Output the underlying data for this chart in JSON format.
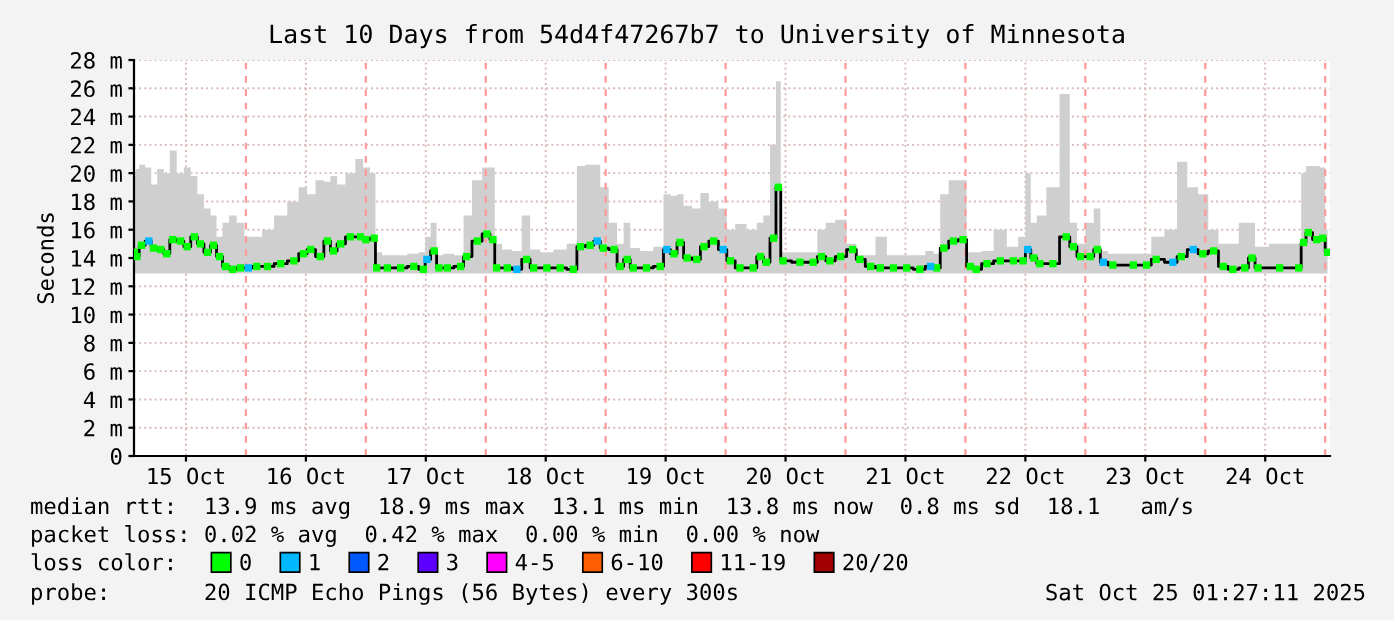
{
  "chart_data": {
    "type": "step",
    "title": "Last 10 Days from 54d4f47267b7 to University of Minnesota",
    "ylabel": "Seconds",
    "legend_title": "loss color:",
    "x": [
      "2025-10-15T01:41",
      "2025-10-15T02:10",
      "2025-10-15T03:07",
      "2025-10-15T04:34",
      "2025-10-15T05:31",
      "2025-10-15T06:58",
      "2025-10-15T08:10",
      "2025-10-15T09:22",
      "2025-10-15T10:55",
      "2025-10-15T12:14",
      "2025-10-15T13:41",
      "2025-10-15T14:53",
      "2025-10-15T16:19",
      "2025-10-15T17:31",
      "2025-10-15T18:43",
      "2025-10-15T19:55",
      "2025-10-15T21:22",
      "2025-10-15T22:55",
      "2025-10-16T00:29",
      "2025-10-16T02:10",
      "2025-10-16T04:19",
      "2025-10-16T06:58",
      "2025-10-16T09:36",
      "2025-10-16T11:31",
      "2025-10-16T12:58",
      "2025-10-16T14:53",
      "2025-10-16T16:19",
      "2025-10-16T17:31",
      "2025-10-16T18:58",
      "2025-10-16T20:53",
      "2025-10-16T22:55",
      "2025-10-17T00:00",
      "2025-10-17T01:41",
      "2025-10-17T02:10",
      "2025-10-17T04:19",
      "2025-10-17T06:58",
      "2025-10-17T09:36",
      "2025-10-17T11:31",
      "2025-10-17T12:14",
      "2025-10-17T13:41",
      "2025-10-17T14:38",
      "2025-10-17T16:19",
      "2025-10-17T18:58",
      "2025-10-17T20:10",
      "2025-10-17T22:19",
      "2025-10-18T00:14",
      "2025-10-18T01:26",
      "2025-10-18T02:10",
      "2025-10-18T04:19",
      "2025-10-18T06:14",
      "2025-10-18T08:10",
      "2025-10-18T09:36",
      "2025-10-18T12:14",
      "2025-10-18T14:53",
      "2025-10-18T17:31",
      "2025-10-18T18:58",
      "2025-10-18T20:53",
      "2025-10-18T22:19",
      "2025-10-18T23:31",
      "2025-10-19T01:41",
      "2025-10-19T02:53",
      "2025-10-19T04:19",
      "2025-10-19T05:31",
      "2025-10-19T08:10",
      "2025-10-19T10:55",
      "2025-10-19T12:14",
      "2025-10-19T13:41",
      "2025-10-19T14:53",
      "2025-10-19T16:19",
      "2025-10-19T18:14",
      "2025-10-19T19:41",
      "2025-10-19T21:36",
      "2025-10-19T23:31",
      "2025-10-20T00:58",
      "2025-10-20T02:53",
      "2025-10-20T05:31",
      "2025-10-20T06:58",
      "2025-10-20T08:10",
      "2025-10-20T09:36",
      "2025-10-20T10:34",
      "2025-10-20T11:31",
      "2025-10-20T14:53",
      "2025-10-20T17:31",
      "2025-10-20T19:12",
      "2025-10-20T20:53",
      "2025-10-20T23:02",
      "2025-10-21T01:26",
      "2025-10-21T02:53",
      "2025-10-21T05:02",
      "2025-10-21T06:58",
      "2025-10-21T09:36",
      "2025-10-21T12:14",
      "2025-10-21T14:53",
      "2025-10-21T17:02",
      "2025-10-21T18:14",
      "2025-10-21T19:41",
      "2025-10-21T21:36",
      "2025-10-21T23:31",
      "2025-10-22T00:58",
      "2025-10-22T02:10",
      "2025-10-22T04:19",
      "2025-10-22T06:58",
      "2025-10-22T09:36",
      "2025-10-22T11:31",
      "2025-10-22T12:29",
      "2025-10-22T13:41",
      "2025-10-22T14:53",
      "2025-10-22T17:31",
      "2025-10-22T20:10",
      "2025-10-22T21:36",
      "2025-10-22T23:02",
      "2025-10-23T00:58",
      "2025-10-23T02:24",
      "2025-10-23T03:36",
      "2025-10-23T05:31",
      "2025-10-23T09:36",
      "2025-10-23T12:14",
      "2025-10-23T14:10",
      "2025-10-23T17:31",
      "2025-10-23T19:12",
      "2025-10-23T21:36",
      "2025-10-23T23:31",
      "2025-10-24T01:41",
      "2025-10-24T03:36",
      "2025-10-24T05:31",
      "2025-10-24T07:55",
      "2025-10-24T09:22",
      "2025-10-24T10:34",
      "2025-10-24T14:53",
      "2025-10-24T18:43",
      "2025-10-24T19:41",
      "2025-10-24T20:38",
      "2025-10-24T22:19",
      "2025-10-24T23:31",
      "2025-10-25T00:29"
    ],
    "series": [
      {
        "color": "#000000",
        "values": [
          14.4,
          14.1,
          14.9,
          15.2,
          14.7,
          14.6,
          14.3,
          15.3,
          15.2,
          14.8,
          15.5,
          15.0,
          14.4,
          14.9,
          14.1,
          13.4,
          13.2,
          13.3,
          13.3,
          13.4,
          13.4,
          13.6,
          13.8,
          14.3,
          14.6,
          14.1,
          15.2,
          14.5,
          15.0,
          15.5,
          15.5,
          15.3,
          15.4,
          13.3,
          13.3,
          13.3,
          13.4,
          13.2,
          13.9,
          14.5,
          13.3,
          13.3,
          13.4,
          14.1,
          15.2,
          15.7,
          15.3,
          13.3,
          13.3,
          13.2,
          13.9,
          13.3,
          13.3,
          13.3,
          13.2,
          14.8,
          14.9,
          15.2,
          14.7,
          14.6,
          13.4,
          13.9,
          13.3,
          13.3,
          13.4,
          14.6,
          14.3,
          15.1,
          14.0,
          13.9,
          14.8,
          15.2,
          14.6,
          13.8,
          13.3,
          13.3,
          14.1,
          13.7,
          15.4,
          19.0,
          13.8,
          13.7,
          13.7,
          14.1,
          13.8,
          14.1,
          14.6,
          13.9,
          13.4,
          13.3,
          13.3,
          13.3,
          13.2,
          13.4,
          13.3,
          14.7,
          15.2,
          15.3,
          13.4,
          13.2,
          13.6,
          13.8,
          13.8,
          13.8,
          14.6,
          14.0,
          13.6,
          13.6,
          15.5,
          14.8,
          14.1,
          14.1,
          14.6,
          13.7,
          13.5,
          13.5,
          13.5,
          13.9,
          13.7,
          14.1,
          14.6,
          14.3,
          14.5,
          13.4,
          13.2,
          13.3,
          14.0,
          13.3,
          13.3,
          13.3,
          15.1,
          15.8,
          15.3,
          15.4,
          14.4
        ],
        "lower": [
          12.9,
          12.9,
          12.9,
          12.9,
          12.9,
          12.9,
          12.9,
          12.9,
          12.9,
          12.9,
          12.9,
          12.9,
          12.9,
          12.9,
          12.9,
          12.9,
          12.9,
          12.9,
          12.9,
          12.9,
          12.9,
          12.9,
          12.9,
          12.9,
          12.9,
          12.9,
          12.9,
          12.9,
          12.9,
          12.9,
          12.9,
          12.9,
          12.9,
          12.9,
          12.9,
          12.9,
          12.9,
          12.9,
          12.9,
          12.9,
          12.9,
          12.9,
          12.9,
          12.9,
          12.9,
          12.9,
          12.9,
          12.9,
          12.9,
          12.9,
          12.9,
          12.9,
          12.9,
          12.9,
          12.9,
          12.9,
          12.9,
          12.9,
          12.9,
          12.9,
          12.9,
          12.9,
          12.9,
          12.9,
          12.9,
          12.9,
          12.9,
          12.9,
          12.9,
          12.9,
          12.9,
          12.9,
          12.9,
          12.9,
          12.9,
          12.9,
          12.9,
          12.9,
          12.9,
          12.9,
          12.9,
          12.9,
          12.9,
          12.9,
          12.9,
          12.9,
          12.9,
          12.9,
          12.9,
          12.9,
          12.9,
          12.9,
          12.9,
          12.9,
          12.9,
          12.9,
          12.9,
          12.9,
          12.9,
          12.9,
          12.9,
          12.9,
          12.9,
          12.9,
          12.9,
          12.9,
          12.9,
          12.9,
          12.9,
          12.9,
          12.9,
          12.9,
          12.9,
          12.9,
          12.9,
          12.9,
          12.9,
          12.9,
          12.9,
          12.9,
          12.9,
          12.9,
          12.9,
          12.9,
          12.9,
          12.9,
          12.9,
          12.9,
          12.9,
          12.9,
          12.9,
          12.9,
          12.9,
          12.9,
          12.9
        ],
        "upper": [
          19.8,
          20.3,
          20.6,
          20.4,
          19.2,
          20.3,
          20.0,
          21.6,
          20.0,
          20.4,
          19.8,
          18.5,
          17.5,
          17.0,
          15.5,
          16.5,
          17.0,
          16.5,
          15.5,
          15.5,
          16.0,
          17.0,
          18.0,
          19.0,
          18.5,
          19.5,
          19.4,
          19.8,
          19.2,
          20.0,
          21.0,
          20.4,
          20.0,
          14.4,
          14.2,
          14.2,
          14.3,
          14.4,
          15.5,
          16.5,
          14.2,
          14.3,
          14.2,
          17.0,
          19.5,
          20.4,
          20.4,
          15.0,
          14.6,
          14.5,
          17.0,
          14.6,
          14.4,
          14.6,
          15.0,
          20.5,
          20.6,
          20.6,
          19.0,
          16.5,
          15.0,
          16.5,
          14.7,
          14.5,
          14.8,
          18.5,
          18.4,
          18.5,
          17.7,
          17.5,
          18.6,
          18.0,
          17.5,
          16.0,
          16.4,
          16.0,
          16.5,
          17.0,
          22.0,
          26.5,
          14.4,
          14.4,
          14.4,
          16.0,
          16.5,
          16.7,
          15.0,
          14.2,
          14.2,
          15.5,
          14.2,
          14.2,
          14.2,
          14.5,
          14.3,
          18.5,
          19.5,
          19.5,
          14.4,
          14.4,
          14.5,
          16.0,
          14.8,
          15.5,
          20.0,
          16.5,
          17.0,
          19.0,
          25.6,
          16.5,
          15.0,
          16.5,
          17.5,
          14.5,
          14.3,
          14.3,
          14.3,
          15.5,
          16.0,
          20.8,
          19.0,
          18.5,
          16.0,
          15.0,
          15.0,
          16.5,
          16.5,
          14.8,
          15.0,
          15.0,
          20.0,
          20.5,
          20.5,
          20.4,
          16.0
        ]
      },
      {
        "type": "scatter",
        "name": "0",
        "color": "#00ff00",
        "marker": "square",
        "values": [
          14.4,
          14.1,
          14.9,
          null,
          14.7,
          14.6,
          14.3,
          15.3,
          15.2,
          14.8,
          15.5,
          15.0,
          14.4,
          14.9,
          14.1,
          13.4,
          13.2,
          13.3,
          null,
          13.4,
          13.4,
          13.6,
          13.8,
          14.3,
          14.6,
          14.1,
          15.2,
          14.5,
          15.0,
          15.5,
          15.5,
          15.3,
          15.4,
          13.3,
          13.3,
          13.3,
          13.4,
          13.2,
          null,
          14.5,
          13.3,
          13.3,
          13.4,
          14.1,
          15.2,
          15.7,
          15.3,
          13.3,
          13.3,
          null,
          13.9,
          13.3,
          13.3,
          13.3,
          13.2,
          14.8,
          14.9,
          null,
          14.7,
          14.6,
          13.4,
          13.9,
          13.3,
          13.3,
          13.4,
          null,
          14.3,
          15.1,
          14.0,
          13.9,
          14.8,
          15.2,
          null,
          13.8,
          13.3,
          13.3,
          14.1,
          13.7,
          15.4,
          19.0,
          13.8,
          13.7,
          13.7,
          14.1,
          13.8,
          14.1,
          14.6,
          13.9,
          13.4,
          13.3,
          13.3,
          13.3,
          13.2,
          null,
          13.3,
          14.7,
          15.2,
          15.3,
          13.4,
          13.2,
          13.6,
          13.8,
          13.8,
          13.8,
          null,
          14.0,
          13.6,
          13.6,
          15.5,
          14.8,
          14.1,
          14.1,
          14.6,
          null,
          13.5,
          13.5,
          13.5,
          13.9,
          null,
          14.1,
          null,
          14.3,
          14.5,
          13.4,
          13.2,
          13.3,
          14.0,
          13.3,
          13.3,
          13.3,
          15.1,
          15.8,
          15.3,
          15.4,
          14.4
        ]
      },
      {
        "type": "scatter",
        "name": "1",
        "color": "#00b8ff",
        "marker": "square",
        "x": [
          "2025-10-15T04:34",
          "2025-10-16T00:29",
          "2025-10-17T12:14",
          "2025-10-18T06:14",
          "2025-10-18T22:19",
          "2025-10-19T12:14",
          "2025-10-19T23:31",
          "2025-10-21T17:02",
          "2025-10-22T12:29",
          "2025-10-23T03:36",
          "2025-10-23T17:31",
          "2025-10-23T21:36"
        ],
        "values": [
          15.2,
          13.3,
          13.9,
          13.2,
          15.2,
          14.6,
          14.6,
          13.4,
          14.6,
          13.7,
          13.7,
          14.6
        ]
      },
      {
        "type": "scatter",
        "name": "2",
        "color": "#0059ff",
        "marker": "square",
        "values": [
          null,
          null,
          null,
          null,
          null,
          null,
          null,
          null,
          null,
          null,
          null,
          null,
          null,
          null,
          null,
          null,
          null,
          null,
          null,
          null,
          null,
          null,
          null,
          null,
          null,
          null,
          null,
          null,
          null,
          null,
          null,
          null,
          null,
          null,
          null,
          null,
          null,
          null,
          null,
          null,
          null,
          null,
          null,
          null,
          null,
          null,
          null,
          null,
          null,
          null,
          null,
          null,
          null,
          null,
          null,
          null,
          null,
          null,
          null,
          null,
          null,
          null,
          null,
          null,
          null,
          null,
          null,
          null,
          null,
          null,
          null,
          null,
          null,
          null,
          null,
          null,
          null,
          null,
          null,
          null,
          null,
          null,
          null,
          null,
          null,
          null,
          null,
          null,
          null,
          null,
          null,
          null,
          null,
          null,
          null,
          null,
          null,
          null,
          null,
          null,
          null,
          null,
          null,
          null,
          null,
          null,
          null,
          null,
          null,
          null,
          null,
          null,
          null,
          null,
          null,
          null,
          null,
          null,
          null,
          null,
          null,
          null,
          null,
          null,
          null,
          null,
          null,
          null,
          null,
          null,
          null,
          null,
          null,
          null,
          null
        ]
      },
      {
        "type": "scatter",
        "name": "3",
        "color": "#5e00ff",
        "marker": "square",
        "values": [
          null,
          null,
          null,
          null,
          null,
          null,
          null,
          null,
          null,
          null,
          null,
          null,
          null,
          null,
          null,
          null,
          null,
          null,
          null,
          null,
          null,
          null,
          null,
          null,
          null,
          null,
          null,
          null,
          null,
          null,
          null,
          null,
          null,
          null,
          null,
          null,
          null,
          null,
          null,
          null,
          null,
          null,
          null,
          null,
          null,
          null,
          null,
          null,
          null,
          null,
          null,
          null,
          null,
          null,
          null,
          null,
          null,
          null,
          null,
          null,
          null,
          null,
          null,
          null,
          null,
          null,
          null,
          null,
          null,
          null,
          null,
          null,
          null,
          null,
          null,
          null,
          null,
          null,
          null,
          null,
          null,
          null,
          null,
          null,
          null,
          null,
          null,
          null,
          null,
          null,
          null,
          null,
          null,
          null,
          null,
          null,
          null,
          null,
          null,
          null,
          null,
          null,
          null,
          null,
          null,
          null,
          null,
          null,
          null,
          null,
          null,
          null,
          null,
          null,
          null,
          null,
          null,
          null,
          null,
          null,
          null,
          null,
          null,
          null,
          null,
          null,
          null,
          null,
          null,
          null,
          null,
          null,
          null,
          null,
          null
        ]
      },
      {
        "type": "scatter",
        "name": "4-5",
        "color": "#ff00ff",
        "marker": "square",
        "values": [
          null,
          null,
          null,
          null,
          null,
          null,
          null,
          null,
          null,
          null,
          null,
          null,
          null,
          null,
          null,
          null,
          null,
          null,
          null,
          null,
          null,
          null,
          null,
          null,
          null,
          null,
          null,
          null,
          null,
          null,
          null,
          null,
          null,
          null,
          null,
          null,
          null,
          null,
          null,
          null,
          null,
          null,
          null,
          null,
          null,
          null,
          null,
          null,
          null,
          null,
          null,
          null,
          null,
          null,
          null,
          null,
          null,
          null,
          null,
          null,
          null,
          null,
          null,
          null,
          null,
          null,
          null,
          null,
          null,
          null,
          null,
          null,
          null,
          null,
          null,
          null,
          null,
          null,
          null,
          null,
          null,
          null,
          null,
          null,
          null,
          null,
          null,
          null,
          null,
          null,
          null,
          null,
          null,
          null,
          null,
          null,
          null,
          null,
          null,
          null,
          null,
          null,
          null,
          null,
          null,
          null,
          null,
          null,
          null,
          null,
          null,
          null,
          null,
          null,
          null,
          null,
          null,
          null,
          null,
          null,
          null,
          null,
          null,
          null,
          null,
          null,
          null,
          null,
          null,
          null,
          null,
          null,
          null,
          null,
          null
        ]
      },
      {
        "type": "scatter",
        "name": "6-10",
        "color": "#ff5e00",
        "marker": "square",
        "values": [
          null,
          null,
          null,
          null,
          null,
          null,
          null,
          null,
          null,
          null,
          null,
          null,
          null,
          null,
          null,
          null,
          null,
          null,
          null,
          null,
          null,
          null,
          null,
          null,
          null,
          null,
          null,
          null,
          null,
          null,
          null,
          null,
          null,
          null,
          null,
          null,
          null,
          null,
          null,
          null,
          null,
          null,
          null,
          null,
          null,
          null,
          null,
          null,
          null,
          null,
          null,
          null,
          null,
          null,
          null,
          null,
          null,
          null,
          null,
          null,
          null,
          null,
          null,
          null,
          null,
          null,
          null,
          null,
          null,
          null,
          null,
          null,
          null,
          null,
          null,
          null,
          null,
          null,
          null,
          null,
          null,
          null,
          null,
          null,
          null,
          null,
          null,
          null,
          null,
          null,
          null,
          null,
          null,
          null,
          null,
          null,
          null,
          null,
          null,
          null,
          null,
          null,
          null,
          null,
          null,
          null,
          null,
          null,
          null,
          null,
          null,
          null,
          null,
          null,
          null,
          null,
          null,
          null,
          null,
          null,
          null,
          null,
          null,
          null,
          null,
          null,
          null,
          null,
          null,
          null,
          null,
          null,
          null,
          null,
          null
        ]
      },
      {
        "type": "scatter",
        "name": "11-19",
        "color": "#ff0000",
        "marker": "square",
        "values": [
          null,
          null,
          null,
          null,
          null,
          null,
          null,
          null,
          null,
          null,
          null,
          null,
          null,
          null,
          null,
          null,
          null,
          null,
          null,
          null,
          null,
          null,
          null,
          null,
          null,
          null,
          null,
          null,
          null,
          null,
          null,
          null,
          null,
          null,
          null,
          null,
          null,
          null,
          null,
          null,
          null,
          null,
          null,
          null,
          null,
          null,
          null,
          null,
          null,
          null,
          null,
          null,
          null,
          null,
          null,
          null,
          null,
          null,
          null,
          null,
          null,
          null,
          null,
          null,
          null,
          null,
          null,
          null,
          null,
          null,
          null,
          null,
          null,
          null,
          null,
          null,
          null,
          null,
          null,
          null,
          null,
          null,
          null,
          null,
          null,
          null,
          null,
          null,
          null,
          null,
          null,
          null,
          null,
          null,
          null,
          null,
          null,
          null,
          null,
          null,
          null,
          null,
          null,
          null,
          null,
          null,
          null,
          null,
          null,
          null,
          null,
          null,
          null,
          null,
          null,
          null,
          null,
          null,
          null,
          null,
          null,
          null,
          null,
          null,
          null,
          null,
          null,
          null,
          null,
          null,
          null,
          null,
          null,
          null,
          null
        ]
      },
      {
        "type": "scatter",
        "name": "20/20",
        "color": "#a10000",
        "marker": "square",
        "values": [
          null,
          null,
          null,
          null,
          null,
          null,
          null,
          null,
          null,
          null,
          null,
          null,
          null,
          null,
          null,
          null,
          null,
          null,
          null,
          null,
          null,
          null,
          null,
          null,
          null,
          null,
          null,
          null,
          null,
          null,
          null,
          null,
          null,
          null,
          null,
          null,
          null,
          null,
          null,
          null,
          null,
          null,
          null,
          null,
          null,
          null,
          null,
          null,
          null,
          null,
          null,
          null,
          null,
          null,
          null,
          null,
          null,
          null,
          null,
          null,
          null,
          null,
          null,
          null,
          null,
          null,
          null,
          null,
          null,
          null,
          null,
          null,
          null,
          null,
          null,
          null,
          null,
          null,
          null,
          null,
          null,
          null,
          null,
          null,
          null,
          null,
          null,
          null,
          null,
          null,
          null,
          null,
          null,
          null,
          null,
          null,
          null,
          null,
          null,
          null,
          null,
          null,
          null,
          null,
          null,
          null,
          null,
          null,
          null,
          null,
          null,
          null,
          null,
          null,
          null,
          null,
          null,
          null,
          null,
          null,
          null,
          null,
          null,
          null,
          null,
          null,
          null,
          null,
          null,
          null,
          null,
          null,
          null,
          null,
          null
        ]
      }
    ],
    "xlim": [
      "2025-10-15T01:36",
      "2025-10-25T00:58"
    ],
    "xticks": [
      {
        "value": "2025-10-15T12:00",
        "label": "15 Oct"
      },
      {
        "value": "2025-10-16T12:00",
        "label": "16 Oct"
      },
      {
        "value": "2025-10-17T12:00",
        "label": "17 Oct"
      },
      {
        "value": "2025-10-18T12:00",
        "label": "18 Oct"
      },
      {
        "value": "2025-10-19T12:00",
        "label": "19 Oct"
      },
      {
        "value": "2025-10-20T12:00",
        "label": "20 Oct"
      },
      {
        "value": "2025-10-21T12:00",
        "label": "21 Oct"
      },
      {
        "value": "2025-10-22T12:00",
        "label": "22 Oct"
      },
      {
        "value": "2025-10-23T12:00",
        "label": "23 Oct"
      },
      {
        "value": "2025-10-24T12:00",
        "label": "24 Oct"
      }
    ],
    "ylim": [
      0,
      28
    ],
    "yticks": [
      0,
      {
        "value": 2,
        "label": "2 m"
      },
      {
        "value": 4,
        "label": "4 m"
      },
      {
        "value": 6,
        "label": "6 m"
      },
      {
        "value": 8,
        "label": "8 m"
      },
      {
        "value": 10,
        "label": "10 m"
      },
      {
        "value": 12,
        "label": "12 m"
      },
      {
        "value": 14,
        "label": "14 m"
      },
      {
        "value": 16,
        "label": "16 m"
      },
      {
        "value": 18,
        "label": "18 m"
      },
      {
        "value": 20,
        "label": "20 m"
      },
      {
        "value": 22,
        "label": "22 m"
      },
      {
        "value": 24,
        "label": "24 m"
      },
      {
        "value": 26,
        "label": "26 m"
      },
      {
        "value": 28,
        "label": "28 m"
      }
    ],
    "ref_lines": [
      {
        "axis": "x",
        "value": "2025-10-16",
        "color": "#ff9a9a",
        "line_style": "dashed"
      },
      {
        "axis": "x",
        "value": "2025-10-17",
        "color": "#ff9a9a",
        "line_style": "dashed"
      },
      {
        "axis": "x",
        "value": "2025-10-18",
        "color": "#ff9a9a",
        "line_style": "dashed"
      },
      {
        "axis": "x",
        "value": "2025-10-19",
        "color": "#ff9a9a",
        "line_style": "dashed"
      },
      {
        "axis": "x",
        "value": "2025-10-20",
        "color": "#ff9a9a",
        "line_style": "dashed"
      },
      {
        "axis": "x",
        "value": "2025-10-21",
        "color": "#ff9a9a",
        "line_style": "dashed"
      },
      {
        "axis": "x",
        "value": "2025-10-22",
        "color": "#ff9a9a",
        "line_style": "dashed"
      },
      {
        "axis": "x",
        "value": "2025-10-23",
        "color": "#ff9a9a",
        "line_style": "dashed"
      },
      {
        "axis": "x",
        "value": "2025-10-24",
        "color": "#ff9a9a",
        "line_style": "dashed"
      },
      {
        "axis": "x",
        "value": "2025-10-25",
        "color": "#ff9a9a",
        "line_style": "dashed"
      }
    ],
    "grid": true,
    "legend": "bottom",
    "annotations": [
      "median rtt:  13.9 ms avg  18.9 ms max  13.1 ms min  13.8 ms now  0.8 ms sd  18.1   am/s",
      "packet loss: 0.02 % avg  0.42 % max  0.00 % min  0.00 % now",
      "probe:       20 ICMP Echo Pings (56 Bytes) every 300s",
      "Sat Oct 25 01:27:11 2025"
    ]
  }
}
